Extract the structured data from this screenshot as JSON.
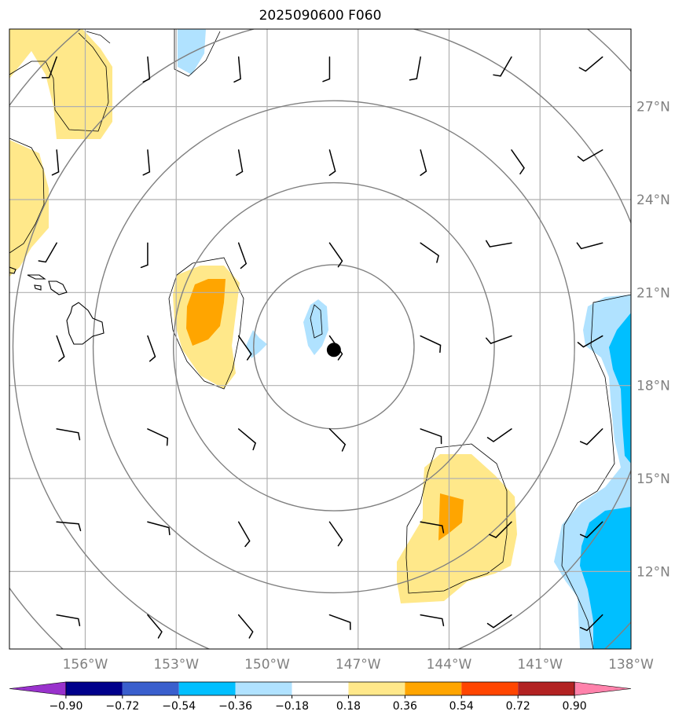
{
  "title": "2025090600 F060",
  "map": {
    "lon_range": [
      -158.5,
      -138.0
    ],
    "lat_range": [
      9.5,
      29.5
    ],
    "lon_ticks": [
      {
        "value": -156,
        "label": "156°W"
      },
      {
        "value": -153,
        "label": "153°W"
      },
      {
        "value": -150,
        "label": "150°W"
      },
      {
        "value": -147,
        "label": "147°W"
      },
      {
        "value": -144,
        "label": "144°W"
      },
      {
        "value": -141,
        "label": "141°W"
      },
      {
        "value": -138,
        "label": "138°W"
      }
    ],
    "lat_ticks": [
      {
        "value": 27,
        "label": "27°N"
      },
      {
        "value": 24,
        "label": "24°N"
      },
      {
        "value": 21,
        "label": "21°N"
      },
      {
        "value": 18,
        "label": "18°N"
      },
      {
        "value": 15,
        "label": "15°N"
      },
      {
        "value": 12,
        "label": "12°N"
      }
    ],
    "storm_center": {
      "lon": -147.8,
      "lat": 19.15
    },
    "range_ring_radii_deg": [
      2.7,
      5.4,
      8.1,
      10.8,
      13.5
    ],
    "colors": {
      "grid": "#b0b0b0",
      "ring": "#808080",
      "coast": "#000000",
      "storm": "#000000"
    }
  },
  "colorbar": {
    "ticks": [
      "−0.90",
      "−0.72",
      "−0.54",
      "−0.36",
      "−0.18",
      "0.18",
      "0.36",
      "0.54",
      "0.72",
      "0.90"
    ],
    "colors": [
      "#9932cc",
      "#00008b",
      "#3a5fcd",
      "#00bfff",
      "#b0e2ff",
      "#ffffff",
      "#ffe88a",
      "#ffa500",
      "#ff4500",
      "#b22222",
      "#ff82ab"
    ]
  }
}
